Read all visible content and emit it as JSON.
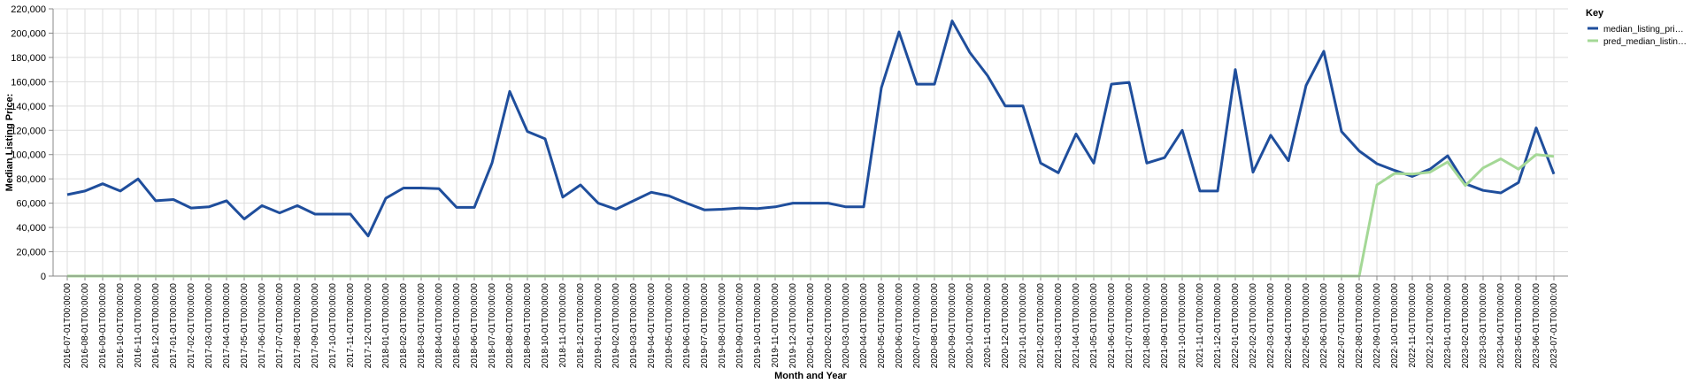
{
  "chart_data": {
    "type": "line",
    "title": "",
    "xlabel": "Month and Year",
    "ylabel": "Median Listing Price:",
    "ylim": [
      0,
      220000
    ],
    "yticks": [
      0,
      20000,
      40000,
      60000,
      80000,
      100000,
      120000,
      140000,
      160000,
      180000,
      200000,
      220000
    ],
    "ytick_labels": [
      "0",
      "20,000",
      "40,000",
      "60,000",
      "80,000",
      "100,000",
      "120,000",
      "140,000",
      "160,000",
      "180,000",
      "200,000",
      "220,000"
    ],
    "grid": true,
    "legend": {
      "title": "Key",
      "position": "right"
    },
    "x": [
      "2016-07-01T00:00:00",
      "2016-08-01T00:00:00",
      "2016-09-01T00:00:00",
      "2016-10-01T00:00:00",
      "2016-11-01T00:00:00",
      "2016-12-01T00:00:00",
      "2017-01-01T00:00:00",
      "2017-02-01T00:00:00",
      "2017-03-01T00:00:00",
      "2017-04-01T00:00:00",
      "2017-05-01T00:00:00",
      "2017-06-01T00:00:00",
      "2017-07-01T00:00:00",
      "2017-08-01T00:00:00",
      "2017-09-01T00:00:00",
      "2017-10-01T00:00:00",
      "2017-11-01T00:00:00",
      "2017-12-01T00:00:00",
      "2018-01-01T00:00:00",
      "2018-02-01T00:00:00",
      "2018-03-01T00:00:00",
      "2018-04-01T00:00:00",
      "2018-05-01T00:00:00",
      "2018-06-01T00:00:00",
      "2018-07-01T00:00:00",
      "2018-08-01T00:00:00",
      "2018-09-01T00:00:00",
      "2018-10-01T00:00:00",
      "2018-11-01T00:00:00",
      "2018-12-01T00:00:00",
      "2019-01-01T00:00:00",
      "2019-02-01T00:00:00",
      "2019-03-01T00:00:00",
      "2019-04-01T00:00:00",
      "2019-05-01T00:00:00",
      "2019-06-01T00:00:00",
      "2019-07-01T00:00:00",
      "2019-08-01T00:00:00",
      "2019-09-01T00:00:00",
      "2019-10-01T00:00:00",
      "2019-11-01T00:00:00",
      "2019-12-01T00:00:00",
      "2020-01-01T00:00:00",
      "2020-02-01T00:00:00",
      "2020-03-01T00:00:00",
      "2020-04-01T00:00:00",
      "2020-05-01T00:00:00",
      "2020-06-01T00:00:00",
      "2020-07-01T00:00:00",
      "2020-08-01T00:00:00",
      "2020-09-01T00:00:00",
      "2020-10-01T00:00:00",
      "2020-11-01T00:00:00",
      "2020-12-01T00:00:00",
      "2021-01-01T00:00:00",
      "2021-02-01T00:00:00",
      "2021-03-01T00:00:00",
      "2021-04-01T00:00:00",
      "2021-05-01T00:00:00",
      "2021-06-01T00:00:00",
      "2021-07-01T00:00:00",
      "2021-08-01T00:00:00",
      "2021-09-01T00:00:00",
      "2021-10-01T00:00:00",
      "2021-11-01T00:00:00",
      "2021-12-01T00:00:00",
      "2022-01-01T00:00:00",
      "2022-02-01T00:00:00",
      "2022-03-01T00:00:00",
      "2022-04-01T00:00:00",
      "2022-05-01T00:00:00",
      "2022-06-01T00:00:00",
      "2022-07-01T00:00:00",
      "2022-08-01T00:00:00",
      "2022-09-01T00:00:00",
      "2022-10-01T00:00:00",
      "2022-11-01T00:00:00",
      "2022-12-01T00:00:00",
      "2023-01-01T00:00:00",
      "2023-02-01T00:00:00",
      "2023-03-01T00:00:00",
      "2023-04-01T00:00:00",
      "2023-05-01T00:00:00",
      "2023-06-01T00:00:00",
      "2023-07-01T00:00:00"
    ],
    "series": [
      {
        "name": "median_listing_pri…",
        "color": "#1f4e9c",
        "values": [
          67000,
          70000,
          76000,
          70000,
          80000,
          62000,
          63000,
          56000,
          57000,
          62000,
          47000,
          58000,
          52000,
          58000,
          51000,
          51000,
          51000,
          33000,
          64000,
          72500,
          72500,
          72000,
          56500,
          56500,
          93000,
          152000,
          119000,
          113000,
          65000,
          75000,
          60000,
          55000,
          62000,
          69000,
          66000,
          60000,
          54500,
          55000,
          56000,
          55500,
          57000,
          60000,
          60000,
          60000,
          57000,
          57000,
          155000,
          201000,
          158000,
          158000,
          210000,
          184000,
          165000,
          140000,
          140000,
          93000,
          85000,
          117000,
          93000,
          158000,
          159500,
          93000,
          97500,
          120000,
          70000,
          70000,
          170000,
          85500,
          116000,
          95000,
          157000,
          185000,
          119000,
          103000,
          92500,
          87000,
          82000,
          88000,
          99000,
          76000,
          70500,
          68500,
          77000,
          122000,
          84000
        ]
      },
      {
        "name": "pred_median_listin…",
        "color": "#a4d896",
        "values": [
          0,
          0,
          0,
          0,
          0,
          0,
          0,
          0,
          0,
          0,
          0,
          0,
          0,
          0,
          0,
          0,
          0,
          0,
          0,
          0,
          0,
          0,
          0,
          0,
          0,
          0,
          0,
          0,
          0,
          0,
          0,
          0,
          0,
          0,
          0,
          0,
          0,
          0,
          0,
          0,
          0,
          0,
          0,
          0,
          0,
          0,
          0,
          0,
          0,
          0,
          0,
          0,
          0,
          0,
          0,
          0,
          0,
          0,
          0,
          0,
          0,
          0,
          0,
          0,
          0,
          0,
          0,
          0,
          0,
          0,
          0,
          0,
          0,
          0,
          75000,
          84500,
          84000,
          85500,
          94000,
          74500,
          89000,
          96500,
          88000,
          100000,
          98500
        ]
      }
    ]
  }
}
